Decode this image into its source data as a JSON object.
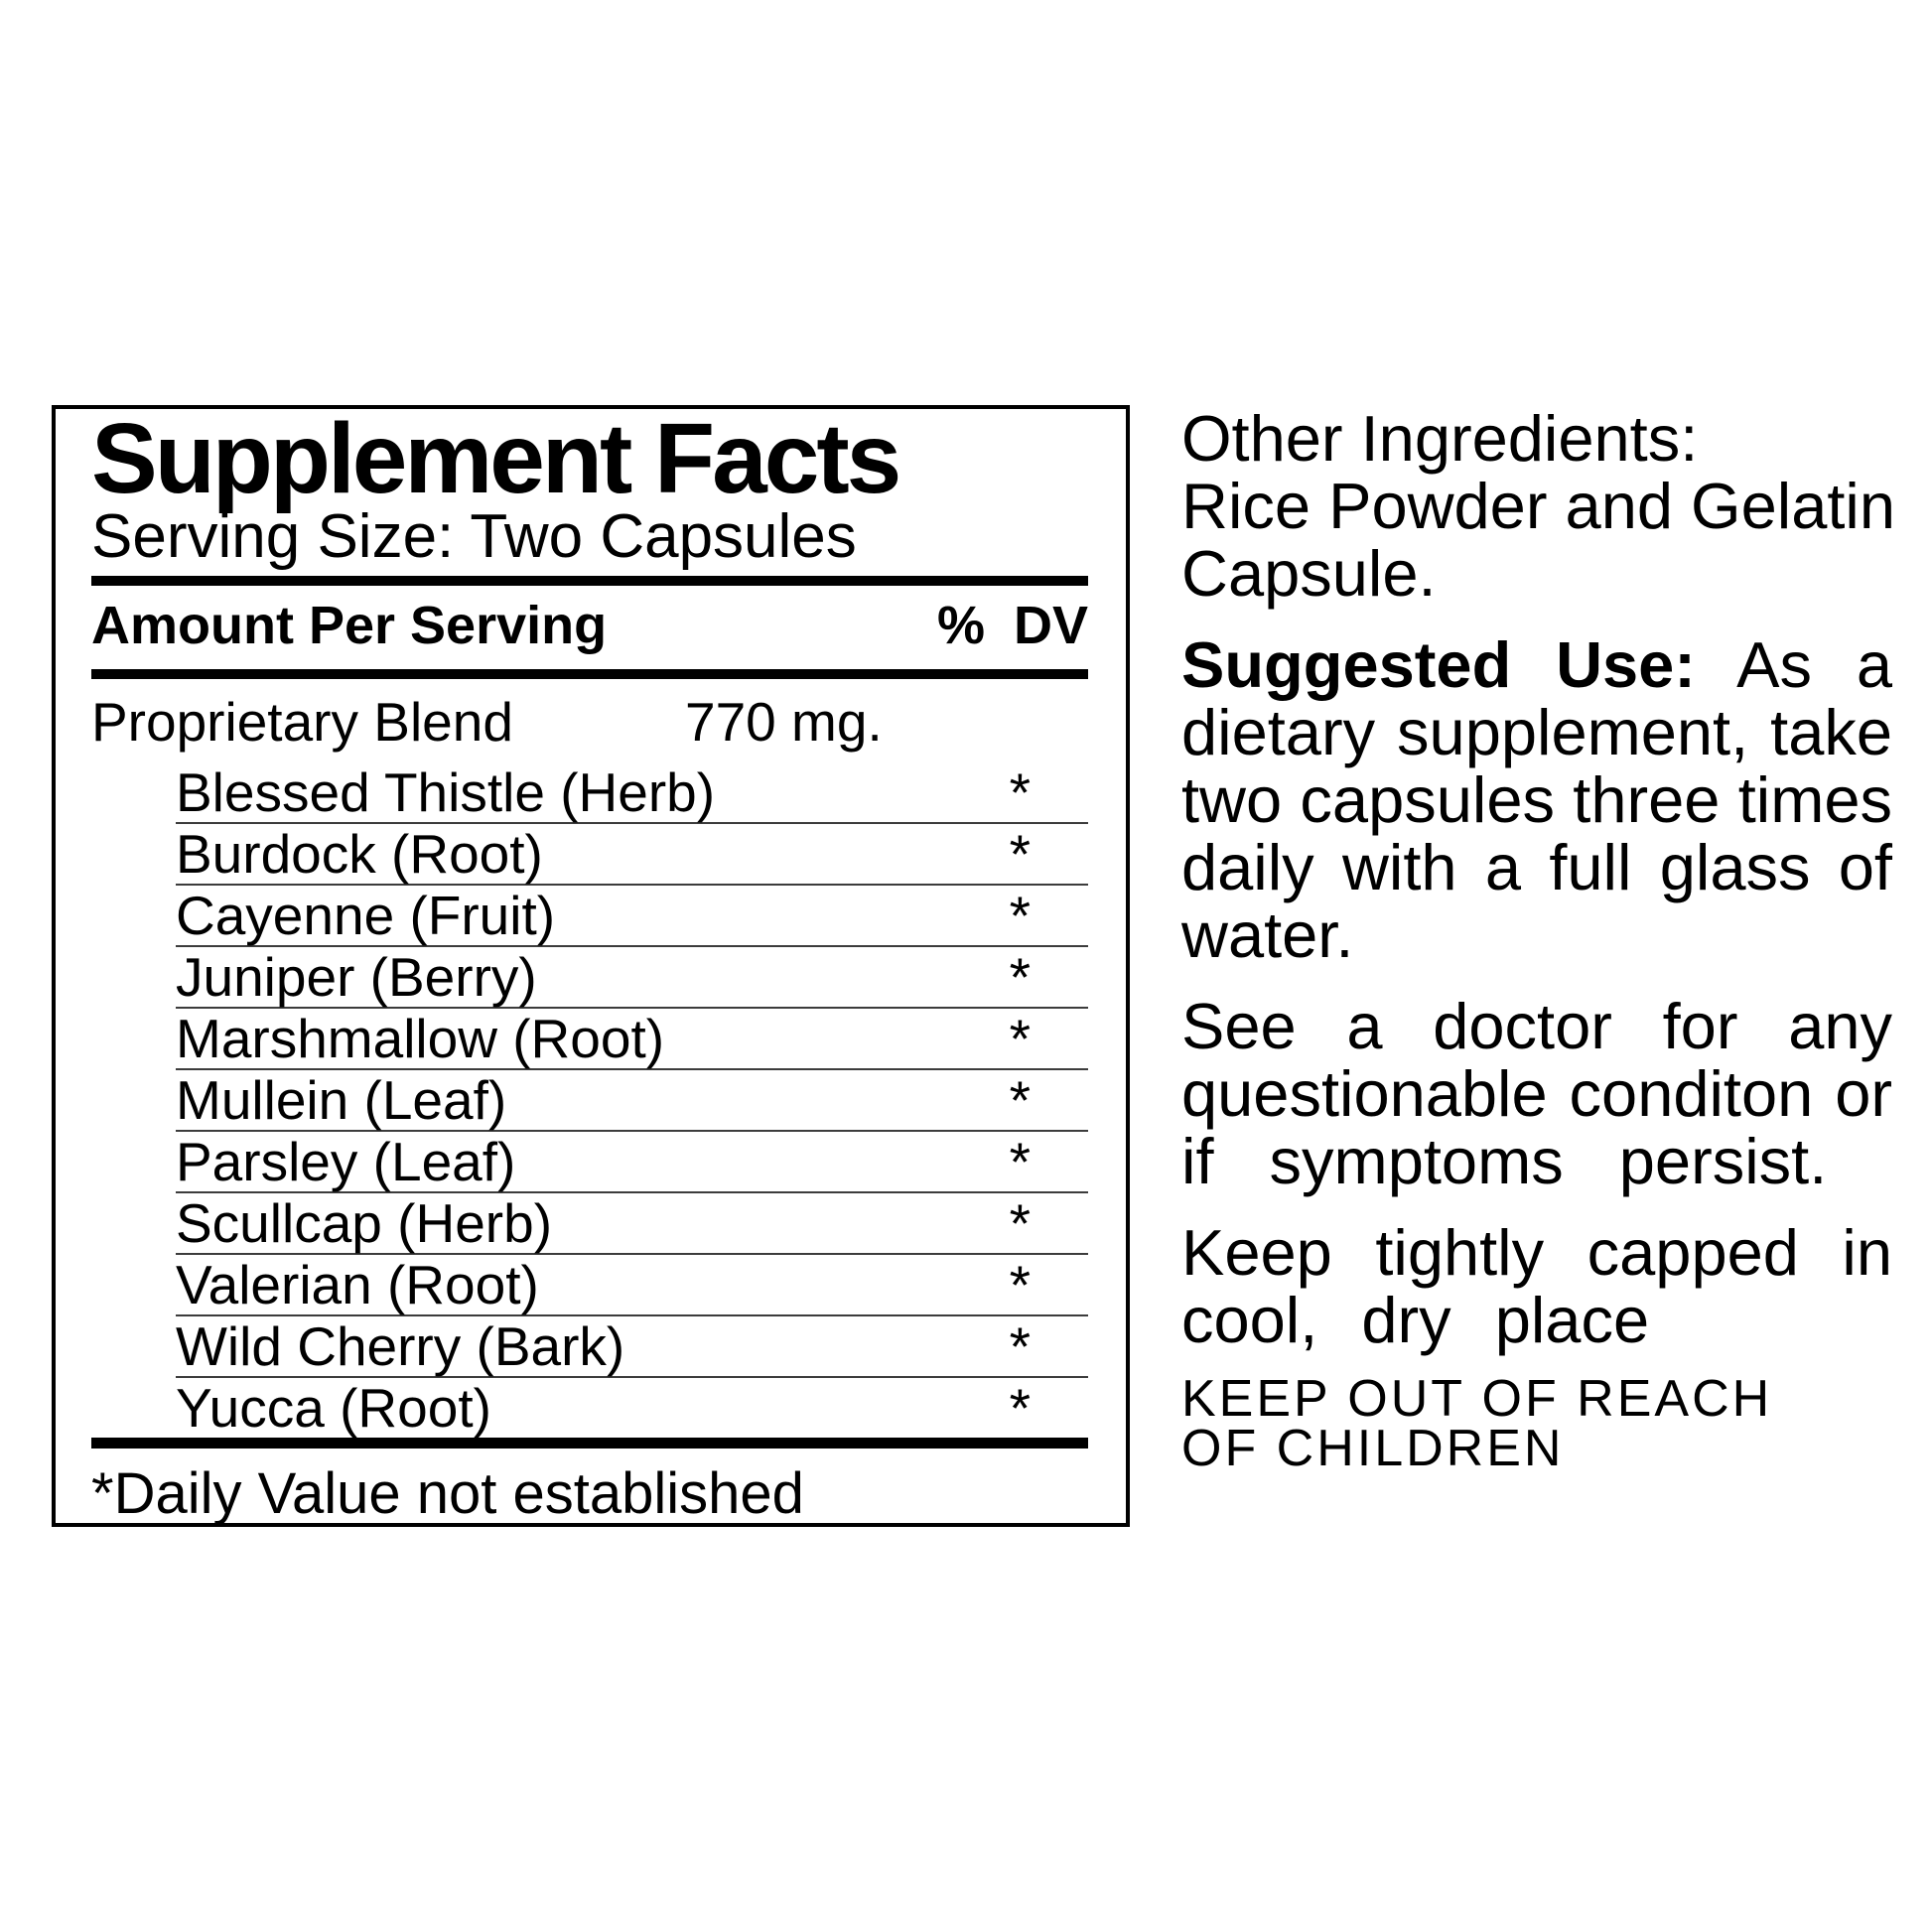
{
  "facts": {
    "title": "Supplement Facts",
    "serving_size": "Serving Size: Two Capsules",
    "amount_per_serving": "Amount Per Serving",
    "percent_dv": "% DV",
    "blend_name": "Proprietary Blend",
    "blend_amount": "770 mg.",
    "ingredients": [
      {
        "name": "Blessed Thistle (Herb)",
        "dv": "*"
      },
      {
        "name": "Burdock (Root)",
        "dv": "*"
      },
      {
        "name": "Cayenne (Fruit)",
        "dv": "*"
      },
      {
        "name": "Juniper (Berry)",
        "dv": "*"
      },
      {
        "name": "Marshmallow (Root)",
        "dv": "*"
      },
      {
        "name": "Mullein (Leaf)",
        "dv": "*"
      },
      {
        "name": "Parsley (Leaf)",
        "dv": "*"
      },
      {
        "name": "Scullcap (Herb)",
        "dv": "*"
      },
      {
        "name": "Valerian (Root)",
        "dv": "*"
      },
      {
        "name": "Wild Cherry (Bark)",
        "dv": "*"
      },
      {
        "name": "Yucca (Root)",
        "dv": "*"
      }
    ],
    "footnote": "*Daily Value not established"
  },
  "right": {
    "other_ingredients": {
      "line1": "Other Ingredients:",
      "line2": "Rice Powder and Gelatin",
      "line3": "Capsule."
    },
    "suggested_use": {
      "label": "Suggested Use:",
      "line1_rest": "As a",
      "line2": "dietary supplement, take",
      "line3": "two capsules three times",
      "line4": "daily with a full glass of",
      "line5": "water."
    },
    "doctor_note": {
      "line1": "See a doctor for any",
      "line2": "questionable conditon or",
      "line3": "if symptoms persist."
    },
    "storage_note": {
      "line1": "Keep tightly capped in",
      "line2": "cool, dry place"
    },
    "warning": {
      "line1": "KEEP OUT OF REACH",
      "line2": "OF CHILDREN"
    }
  },
  "colors": {
    "text": "#000000",
    "background": "#ffffff",
    "rule": "#000000",
    "row_separator": "#3c3c3c"
  }
}
